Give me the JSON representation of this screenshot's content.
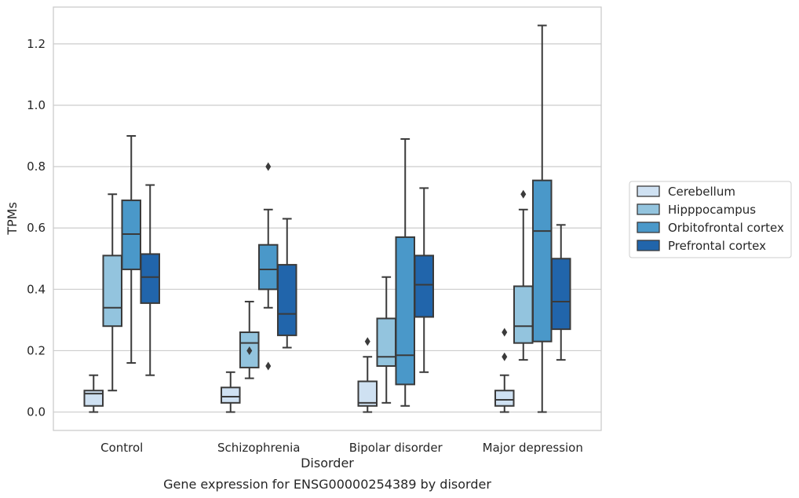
{
  "chart_data": {
    "type": "box",
    "title": "",
    "caption": "Gene expression for ENSG00000254389 by disorder",
    "xlabel": "Disorder",
    "ylabel": "TPMs",
    "ylim": [
      -0.06,
      1.32
    ],
    "yticks": [
      "0.0",
      "0.2",
      "0.4",
      "0.6",
      "0.8",
      "1.0",
      "1.2"
    ],
    "grid": "horizontal",
    "legend_position": "right",
    "categories": [
      "Control",
      "Schizophrenia",
      "Bipolar disorder",
      "Major depression"
    ],
    "series": [
      {
        "name": "Cerebellum",
        "color": "#cfe1f2",
        "boxes": [
          {
            "whislo": 0.0,
            "q1": 0.02,
            "med": 0.06,
            "q3": 0.07,
            "whishi": 0.12,
            "fliers": []
          },
          {
            "whislo": 0.0,
            "q1": 0.03,
            "med": 0.05,
            "q3": 0.08,
            "whishi": 0.13,
            "fliers": []
          },
          {
            "whislo": 0.0,
            "q1": 0.02,
            "med": 0.03,
            "q3": 0.1,
            "whishi": 0.18,
            "fliers": [
              0.23
            ]
          },
          {
            "whislo": 0.0,
            "q1": 0.02,
            "med": 0.04,
            "q3": 0.07,
            "whishi": 0.12,
            "fliers": [
              0.18,
              0.26
            ]
          }
        ]
      },
      {
        "name": "Hipppocampus",
        "color": "#93c4de",
        "boxes": [
          {
            "whislo": 0.07,
            "q1": 0.28,
            "med": 0.34,
            "q3": 0.51,
            "whishi": 0.71,
            "fliers": []
          },
          {
            "whislo": 0.11,
            "q1": 0.145,
            "med": 0.225,
            "q3": 0.26,
            "whishi": 0.36,
            "fliers": [
              0.2
            ]
          },
          {
            "whislo": 0.03,
            "q1": 0.15,
            "med": 0.18,
            "q3": 0.305,
            "whishi": 0.44,
            "fliers": []
          },
          {
            "whislo": 0.17,
            "q1": 0.225,
            "med": 0.28,
            "q3": 0.41,
            "whishi": 0.66,
            "fliers": [
              0.71
            ]
          }
        ]
      },
      {
        "name": "Orbitofrontal cortex",
        "color": "#4a98c9",
        "boxes": [
          {
            "whislo": 0.16,
            "q1": 0.465,
            "med": 0.58,
            "q3": 0.69,
            "whishi": 0.9,
            "fliers": []
          },
          {
            "whislo": 0.34,
            "q1": 0.4,
            "med": 0.465,
            "q3": 0.545,
            "whishi": 0.66,
            "fliers": [
              0.15,
              0.8
            ]
          },
          {
            "whislo": 0.02,
            "q1": 0.09,
            "med": 0.185,
            "q3": 0.57,
            "whishi": 0.89,
            "fliers": []
          },
          {
            "whislo": 0.0,
            "q1": 0.23,
            "med": 0.59,
            "q3": 0.755,
            "whishi": 1.26,
            "fliers": []
          }
        ]
      },
      {
        "name": "Prefrontal cortex",
        "color": "#2165ab",
        "boxes": [
          {
            "whislo": 0.12,
            "q1": 0.355,
            "med": 0.44,
            "q3": 0.515,
            "whishi": 0.74,
            "fliers": []
          },
          {
            "whislo": 0.21,
            "q1": 0.25,
            "med": 0.32,
            "q3": 0.48,
            "whishi": 0.63,
            "fliers": []
          },
          {
            "whislo": 0.13,
            "q1": 0.31,
            "med": 0.415,
            "q3": 0.51,
            "whishi": 0.73,
            "fliers": []
          },
          {
            "whislo": 0.17,
            "q1": 0.27,
            "med": 0.36,
            "q3": 0.5,
            "whishi": 0.61,
            "fliers": []
          }
        ]
      }
    ]
  }
}
